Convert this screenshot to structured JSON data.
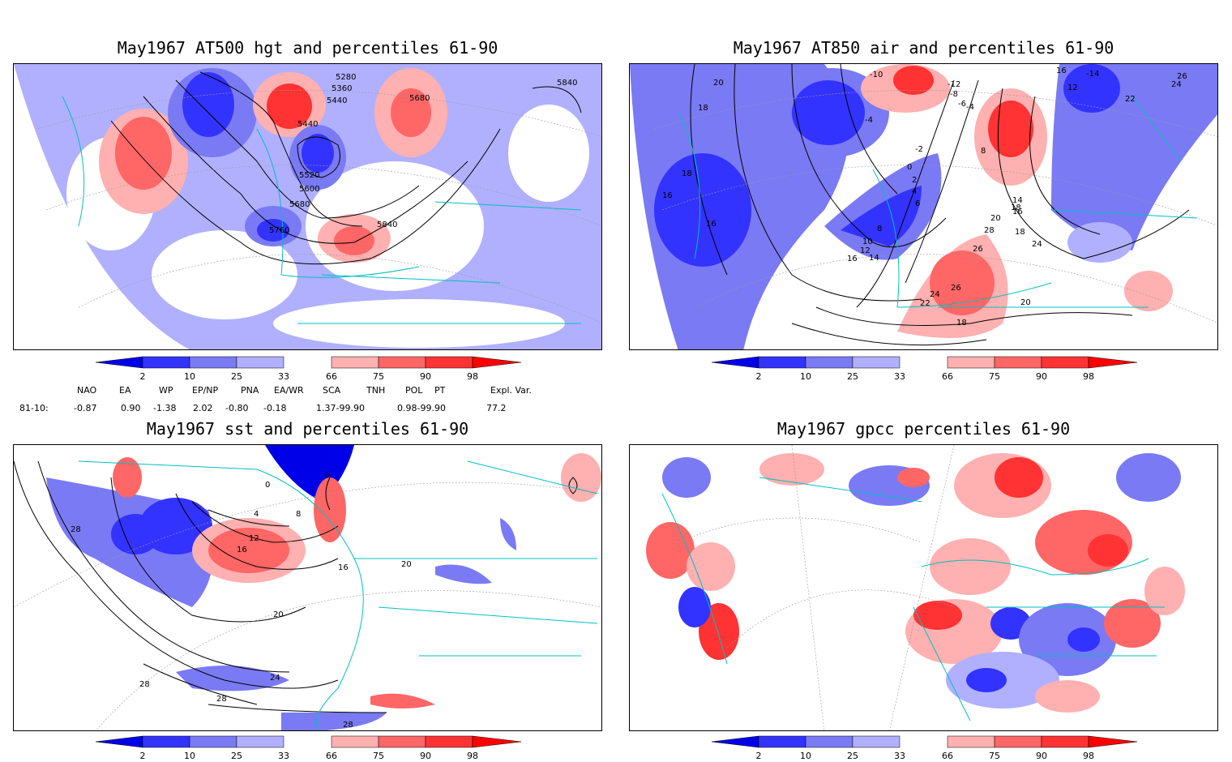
{
  "panels": [
    {
      "title": "May1967 AT500 hgt and percentiles 61-90",
      "contour_labels": [
        "5280",
        "5360",
        "5440",
        "5680",
        "5440",
        "5520",
        "5600",
        "5680",
        "5760",
        "5840",
        "5840"
      ]
    },
    {
      "title": "May1967 AT850 air and percentiles 61-90",
      "contour_labels": [
        "20",
        "18",
        "-10",
        "-12",
        "-8",
        "-6",
        "-4",
        "16",
        "-14",
        "12",
        "26",
        "24",
        "22",
        "-4",
        "-2",
        "0",
        "2",
        "4",
        "6",
        "8",
        "18",
        "16",
        "16",
        "14",
        "16",
        "18",
        "20",
        "24",
        "26",
        "28",
        "8",
        "10",
        "12",
        "14",
        "16",
        "18",
        "26",
        "24",
        "22",
        "20",
        "18"
      ]
    },
    {
      "title": "May1967 sst and percentiles 61-90",
      "contour_labels": [
        "0",
        "0",
        "4",
        "8",
        "12",
        "16",
        "16",
        "20",
        "20",
        "24",
        "28",
        "28",
        "28",
        "28"
      ]
    },
    {
      "title": "May1967 gpcc percentiles 61-90",
      "contour_labels": []
    }
  ],
  "colorbar": {
    "ticks": [
      "2",
      "10",
      "25",
      "33",
      "66",
      "75",
      "90",
      "98"
    ],
    "colors": {
      "below_2": "#0000e8",
      "c2_10": "#3333ff",
      "c10_25": "#7a7af5",
      "c25_33": "#b0b0ff",
      "c66_75": "#ffb0b0",
      "c75_90": "#ff6666",
      "c90_98": "#ff3333",
      "above_98": "#ff0000"
    }
  },
  "indices": {
    "headers": [
      "NAO",
      "EA",
      "WP",
      "EP/NP",
      "PNA",
      "EA/WR",
      "SCA",
      "TNH",
      "POL",
      "PT",
      "Expl. Var."
    ],
    "row_label": "81-10:",
    "values": [
      "-0.87",
      "0.90",
      "-1.38",
      "2.02",
      "-0.80",
      "-0.18",
      "1.37-99.90",
      "0.98-99.90",
      "77.2"
    ]
  },
  "map_colors": {
    "coast": "#00c0c0",
    "contour": "#000000",
    "grid": "#9a9a9a"
  }
}
